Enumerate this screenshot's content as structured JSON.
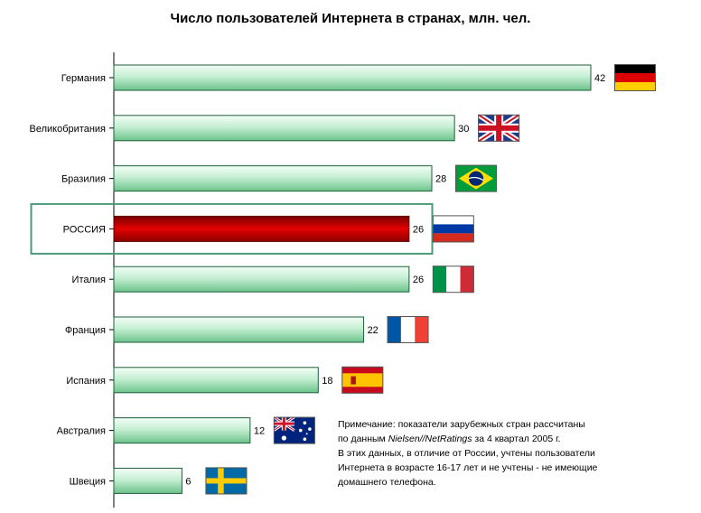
{
  "title": "Число пользователей Интернета в странах, млн. чел.",
  "chart_data": {
    "type": "bar",
    "orientation": "horizontal",
    "title": "Число пользователей Интернета в странах, млн. чел.",
    "categories": [
      "Германия",
      "Великобритания",
      "Бразилия",
      "РОССИЯ",
      "Италия",
      "Франция",
      "Испания",
      "Австралия",
      "Швеция"
    ],
    "values": [
      42,
      30,
      28,
      26,
      26,
      22,
      18,
      12,
      6
    ],
    "flags": [
      "germany-flag",
      "uk-flag",
      "brazil-flag",
      "russia-flag",
      "italy-flag",
      "france-flag",
      "spain-flag",
      "australia-flag",
      "sweden-flag"
    ],
    "highlight": "РОССИЯ",
    "colors": {
      "bar": "#c9f0d6",
      "bar_edge": "#2e8b57",
      "highlight_bar": "#cc0000",
      "highlight_box": "#4a9a7a"
    },
    "xlim": [
      0,
      42
    ]
  },
  "note": {
    "line1": "Примечание: показатели зарубежных стран рассчитаны",
    "line2_pre": "по данным ",
    "line2_em": "Nielsen//NetRatings",
    "line2_post": " за 4 квартал 2005 г.",
    "line3": "В этих данных, в отличие от России, учтены пользователи",
    "line4": "Интернета в возрасте 16-17 лет и не учтены - не имеющие",
    "line5": "домашнего телефона."
  }
}
